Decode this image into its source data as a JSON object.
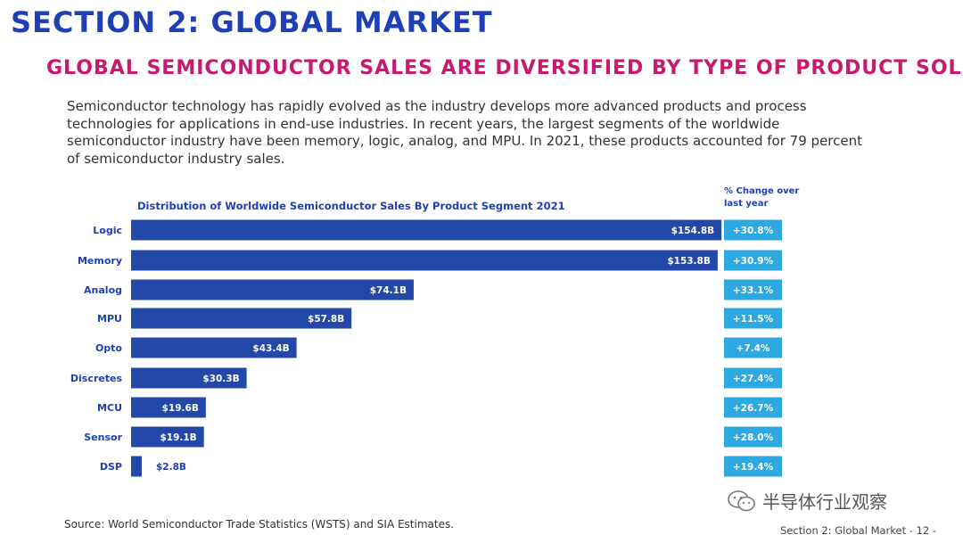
{
  "header": {
    "section_title": "SECTION 2: GLOBAL MARKET",
    "subtitle": "GLOBAL SEMICONDUCTOR SALES ARE DIVERSIFIED BY TYPE OF PRODUCT SOLD",
    "intro": "Semiconductor technology has rapidly evolved as the industry develops more advanced products and process technologies for applications in end-use industries. In recent years, the largest segments of the worldwide semiconductor industry have been memory, logic, analog, and MPU. In 2021, these products accounted for 79 percent of semiconductor industry sales."
  },
  "chart_data": {
    "type": "bar",
    "orientation": "horizontal",
    "title": "Distribution of Worldwide Semiconductor Sales By Product Segment 2021",
    "change_header": "% Change over last year",
    "categories": [
      "Logic",
      "Memory",
      "Analog",
      "MPU",
      "Opto",
      "Discretes",
      "MCU",
      "Sensor",
      "DSP"
    ],
    "values": [
      154.8,
      153.8,
      74.1,
      57.8,
      43.4,
      30.3,
      19.6,
      19.1,
      2.8
    ],
    "value_labels": [
      "$154.8B",
      "$153.8B",
      "$74.1B",
      "$57.8B",
      "$43.4B",
      "$30.3B",
      "$19.6B",
      "$19.1B",
      "$2.8B"
    ],
    "changes": [
      30.8,
      30.9,
      33.1,
      11.5,
      7.4,
      27.4,
      26.7,
      28.0,
      19.4
    ],
    "change_labels": [
      "+30.8%",
      "+30.9%",
      "+33.1%",
      "+11.5%",
      "+7.4%",
      "+27.4%",
      "+26.7%",
      "+28.0%",
      "+19.4%"
    ],
    "unit": "USD billions",
    "xlim": [
      0,
      155
    ],
    "colors": {
      "bar": "#2448a8",
      "change_box": "#2ea8e0",
      "label": "#1f3fb5",
      "bar_text": "#ffffff"
    }
  },
  "source": "Source: World Semiconductor Trade Statistics (WSTS) and SIA Estimates.",
  "watermark": "半导体行业观察",
  "footer": "Section 2: Global Market - 12 -"
}
